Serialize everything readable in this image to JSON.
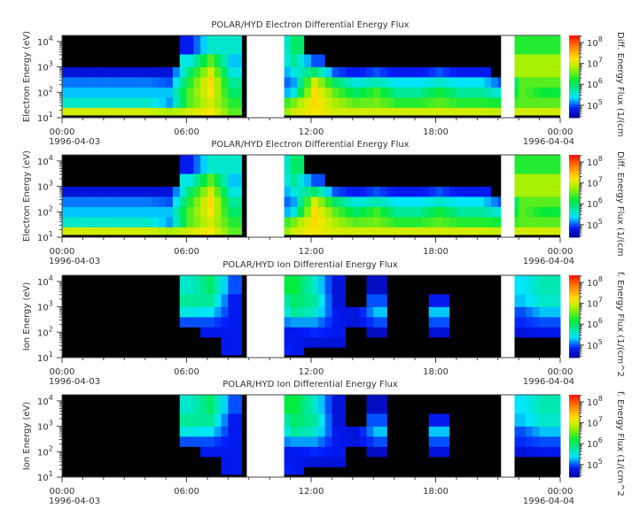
{
  "chart_data": [
    {
      "type": "heatmap",
      "title": "POLAR/HYD  Electron Differential Energy Flux",
      "ylabel": "Electron Energy (eV)",
      "colorbar_label": "Diff. Energy Flux (1/(cm",
      "x_tick_labels": [
        "00:00",
        "06:00",
        "12:00",
        "18:00",
        "00:00"
      ],
      "x_date_labels": [
        "1996-04-03",
        "1996-04-04"
      ],
      "xlim_hours": [
        0,
        24
      ],
      "ylim_log10_eV": [
        1,
        4.24
      ],
      "y_scale": "log",
      "y_tick_exponents": [
        "1",
        "2",
        "3",
        "4"
      ],
      "colorbar_tick_exponents": [
        "5",
        "6",
        "7",
        "8"
      ],
      "color_range_log10": [
        4.4,
        8.34
      ],
      "colormap": "rainbow (black below range)",
      "data_gaps_hours": [
        [
          8.9,
          10.7
        ],
        [
          21.15,
          21.8
        ]
      ],
      "time_bin_start_hours": [
        0,
        1,
        2,
        3,
        4,
        5,
        6,
        7,
        8,
        9,
        10,
        11,
        12,
        13,
        14,
        15,
        16,
        17,
        18,
        19,
        20,
        21,
        22,
        23
      ],
      "energy_band_log10_eV": [
        1.2,
        1.6,
        2.0,
        2.4,
        2.8,
        3.2,
        3.8
      ],
      "log10_flux": [
        [
          7.0,
          5.6,
          5.3,
          5.1,
          4.7,
          0,
          0
        ],
        [
          7.0,
          5.6,
          5.3,
          5.1,
          4.7,
          0,
          0
        ],
        [
          7.0,
          5.6,
          5.3,
          5.1,
          4.7,
          0,
          0
        ],
        [
          7.0,
          5.6,
          5.3,
          5.1,
          4.7,
          0,
          0
        ],
        [
          7.0,
          5.6,
          5.3,
          5.1,
          4.7,
          0,
          0
        ],
        [
          6.8,
          5.2,
          5.3,
          5.0,
          4.7,
          0,
          0
        ],
        [
          7.0,
          6.5,
          6.5,
          6.3,
          6.0,
          5.5,
          4.8
        ],
        [
          7.2,
          7.0,
          7.2,
          7.3,
          7.0,
          6.5,
          5.6
        ],
        [
          6.5,
          6.3,
          6.0,
          5.8,
          5.5,
          5.3,
          5.6
        ],
        [
          0,
          0,
          0,
          0,
          0,
          0,
          0
        ],
        [
          6.2,
          6.0,
          4.8,
          4.8,
          4.8,
          5.0,
          4.8
        ],
        [
          7.0,
          6.6,
          5.5,
          5.2,
          5.5,
          5.8,
          6.0
        ],
        [
          7.2,
          7.3,
          7.3,
          7.0,
          6.0,
          5.0,
          0
        ],
        [
          7.0,
          6.8,
          6.5,
          6.0,
          5.0,
          0,
          0
        ],
        [
          7.0,
          6.5,
          6.0,
          5.5,
          4.8,
          0,
          0
        ],
        [
          7.0,
          6.6,
          6.4,
          5.7,
          5.0,
          0,
          0
        ],
        [
          7.0,
          6.3,
          5.8,
          5.4,
          4.8,
          0,
          0
        ],
        [
          7.0,
          6.3,
          5.8,
          5.4,
          4.8,
          0,
          0
        ],
        [
          7.0,
          6.5,
          6.2,
          5.6,
          5.0,
          0,
          0
        ],
        [
          7.0,
          6.3,
          5.8,
          5.4,
          4.8,
          0,
          0
        ],
        [
          7.0,
          6.3,
          5.8,
          5.4,
          4.8,
          0,
          0
        ],
        [
          6.9,
          6.2,
          5.5,
          5.0,
          0,
          0,
          0
        ],
        [
          7.0,
          6.5,
          6.5,
          6.5,
          6.8,
          6.8,
          6.3
        ],
        [
          7.0,
          6.5,
          6.2,
          6.5,
          6.8,
          6.8,
          6.3
        ]
      ]
    },
    {
      "type": "heatmap",
      "title": "POLAR/HYD  Electron Differential Energy Flux",
      "ylabel": "Electron Energy (eV)",
      "colorbar_label": "Diff. Energy Flux (1/(cm",
      "x_tick_labels": [
        "00:00",
        "06:00",
        "12:00",
        "18:00",
        "00:00"
      ],
      "x_date_labels": [
        "1996-04-03",
        "1996-04-04"
      ],
      "xlim_hours": [
        0,
        24
      ],
      "ylim_log10_eV": [
        1,
        4.24
      ],
      "y_scale": "log",
      "y_tick_exponents": [
        "1",
        "2",
        "3",
        "4"
      ],
      "colorbar_tick_exponents": [
        "5",
        "6",
        "7",
        "8"
      ],
      "color_range_log10": [
        4.4,
        8.34
      ],
      "colormap": "rainbow (black below range)",
      "data_gaps_hours": [
        [
          8.9,
          10.7
        ],
        [
          21.15,
          21.8
        ]
      ],
      "time_bin_start_hours": [
        0,
        1,
        2,
        3,
        4,
        5,
        6,
        7,
        8,
        9,
        10,
        11,
        12,
        13,
        14,
        15,
        16,
        17,
        18,
        19,
        20,
        21,
        22,
        23
      ],
      "energy_band_log10_eV": [
        1.2,
        1.6,
        2.0,
        2.4,
        2.8,
        3.2,
        3.8
      ],
      "log10_flux": [
        [
          7.0,
          5.6,
          5.3,
          5.1,
          4.7,
          0,
          0
        ],
        [
          7.0,
          5.6,
          5.3,
          5.1,
          4.7,
          0,
          0
        ],
        [
          7.0,
          5.6,
          5.3,
          5.1,
          4.7,
          0,
          0
        ],
        [
          7.0,
          5.6,
          5.3,
          5.1,
          4.7,
          0,
          0
        ],
        [
          7.0,
          5.6,
          5.3,
          5.1,
          4.7,
          0,
          0
        ],
        [
          6.8,
          5.2,
          5.3,
          5.0,
          4.7,
          0,
          0
        ],
        [
          7.0,
          6.5,
          6.5,
          6.3,
          6.0,
          5.5,
          4.8
        ],
        [
          7.2,
          7.0,
          7.2,
          7.3,
          7.0,
          6.5,
          5.6
        ],
        [
          6.5,
          6.3,
          6.0,
          5.8,
          5.5,
          5.3,
          5.6
        ],
        [
          0,
          0,
          0,
          0,
          0,
          0,
          0
        ],
        [
          6.2,
          6.0,
          4.8,
          4.8,
          4.8,
          5.0,
          4.8
        ],
        [
          7.0,
          6.6,
          5.5,
          5.2,
          5.5,
          5.8,
          6.0
        ],
        [
          7.2,
          7.3,
          7.3,
          7.0,
          6.0,
          5.0,
          0
        ],
        [
          7.0,
          6.8,
          6.5,
          6.0,
          5.0,
          0,
          0
        ],
        [
          7.0,
          6.5,
          6.0,
          5.5,
          4.8,
          0,
          0
        ],
        [
          7.0,
          6.6,
          6.4,
          5.7,
          5.0,
          0,
          0
        ],
        [
          7.0,
          6.3,
          5.8,
          5.4,
          4.8,
          0,
          0
        ],
        [
          7.0,
          6.3,
          5.8,
          5.4,
          4.8,
          0,
          0
        ],
        [
          7.0,
          6.5,
          6.2,
          5.6,
          5.0,
          0,
          0
        ],
        [
          7.0,
          6.3,
          5.8,
          5.4,
          4.8,
          0,
          0
        ],
        [
          7.0,
          6.3,
          5.8,
          5.4,
          4.8,
          0,
          0
        ],
        [
          6.9,
          6.2,
          5.5,
          5.0,
          0,
          0,
          0
        ],
        [
          7.0,
          6.5,
          6.5,
          6.5,
          6.8,
          6.8,
          6.3
        ],
        [
          7.0,
          6.5,
          6.2,
          6.5,
          6.8,
          6.8,
          6.3
        ]
      ]
    },
    {
      "type": "heatmap",
      "title": "POLAR/HYD  Ion Differential Energy Flux",
      "ylabel": "Ion Energy (eV)",
      "colorbar_label": "f. Energy Flux (1/(cm^2",
      "x_tick_labels": [
        "00:00",
        "06:00",
        "12:00",
        "18:00",
        "00:00"
      ],
      "x_date_labels": [
        "1996-04-03",
        "1996-04-04"
      ],
      "xlim_hours": [
        0,
        24
      ],
      "ylim_log10_eV": [
        1,
        4.24
      ],
      "y_scale": "log",
      "y_tick_exponents": [
        "1",
        "2",
        "3",
        "4"
      ],
      "colorbar_tick_exponents": [
        "5",
        "6",
        "7",
        "8"
      ],
      "color_range_log10": [
        4.4,
        8.34
      ],
      "colormap": "rainbow (black below range)",
      "data_gaps_hours": [
        [
          8.9,
          10.7
        ],
        [
          21.15,
          21.8
        ]
      ],
      "time_bin_start_hours": [
        0,
        1,
        2,
        3,
        4,
        5,
        6,
        7,
        8,
        9,
        10,
        11,
        12,
        13,
        14,
        15,
        16,
        17,
        18,
        19,
        20,
        21,
        22,
        23
      ],
      "energy_band_log10_eV": [
        1.2,
        1.6,
        2.0,
        2.4,
        2.8,
        3.2,
        3.8
      ],
      "log10_flux": [
        [
          0,
          0,
          0,
          0,
          0,
          0,
          0
        ],
        [
          0,
          0,
          0,
          0,
          0,
          0,
          0
        ],
        [
          0,
          0,
          0,
          0,
          0,
          0,
          0
        ],
        [
          0,
          0,
          0,
          0,
          0,
          0,
          0
        ],
        [
          0,
          0,
          0,
          0,
          0,
          0,
          0
        ],
        [
          0,
          0,
          0,
          0,
          0,
          0,
          0
        ],
        [
          0,
          0,
          0,
          5.0,
          5.5,
          5.8,
          5.6
        ],
        [
          0,
          0,
          4.8,
          5.0,
          5.4,
          5.8,
          6.0
        ],
        [
          4.8,
          4.8,
          4.8,
          4.8,
          4.8,
          4.8,
          5.0
        ],
        [
          0,
          0,
          0,
          0,
          0,
          0,
          0
        ],
        [
          5.0,
          4.8,
          4.8,
          5.0,
          5.0,
          5.3,
          6.0
        ],
        [
          4.8,
          4.8,
          4.8,
          5.2,
          5.8,
          6.0,
          6.2
        ],
        [
          0,
          4.7,
          4.9,
          5.2,
          5.6,
          5.8,
          5.6
        ],
        [
          0,
          4.7,
          4.8,
          4.8,
          4.8,
          4.7,
          4.7
        ],
        [
          0,
          0,
          0,
          4.7,
          4.7,
          0,
          0
        ],
        [
          0,
          0,
          4.6,
          5.0,
          5.3,
          5.0,
          4.6
        ],
        [
          0,
          0,
          0,
          0,
          0,
          0,
          0
        ],
        [
          0,
          0,
          0,
          0,
          0,
          0,
          0
        ],
        [
          0,
          0,
          4.7,
          5.0,
          5.3,
          4.8,
          0
        ],
        [
          0,
          0,
          0,
          0,
          0,
          0,
          0
        ],
        [
          0,
          0,
          0,
          0,
          0,
          0,
          0
        ],
        [
          0,
          0,
          0,
          0,
          0,
          0,
          0
        ],
        [
          0,
          0,
          4.7,
          4.9,
          5.0,
          5.3,
          5.4
        ],
        [
          0,
          0,
          4.8,
          5.0,
          5.3,
          5.6,
          5.7
        ]
      ]
    },
    {
      "type": "heatmap",
      "title": "POLAR/HYD  Ion Differential Energy Flux",
      "ylabel": "Ion Energy (eV)",
      "colorbar_label": "f. Energy Flux (1/(cm^2",
      "x_tick_labels": [
        "00:00",
        "06:00",
        "12:00",
        "18:00",
        "00:00"
      ],
      "x_date_labels": [
        "1996-04-03",
        "1996-04-04"
      ],
      "xlim_hours": [
        0,
        24
      ],
      "ylim_log10_eV": [
        1,
        4.24
      ],
      "y_scale": "log",
      "y_tick_exponents": [
        "1",
        "2",
        "3",
        "4"
      ],
      "colorbar_tick_exponents": [
        "5",
        "6",
        "7",
        "8"
      ],
      "color_range_log10": [
        4.4,
        8.34
      ],
      "colormap": "rainbow (black below range)",
      "data_gaps_hours": [
        [
          8.9,
          10.7
        ],
        [
          21.15,
          21.8
        ]
      ],
      "time_bin_start_hours": [
        0,
        1,
        2,
        3,
        4,
        5,
        6,
        7,
        8,
        9,
        10,
        11,
        12,
        13,
        14,
        15,
        16,
        17,
        18,
        19,
        20,
        21,
        22,
        23
      ],
      "energy_band_log10_eV": [
        1.2,
        1.6,
        2.0,
        2.4,
        2.8,
        3.2,
        3.8
      ],
      "log10_flux": [
        [
          0,
          0,
          0,
          0,
          0,
          0,
          0
        ],
        [
          0,
          0,
          0,
          0,
          0,
          0,
          0
        ],
        [
          0,
          0,
          0,
          0,
          0,
          0,
          0
        ],
        [
          0,
          0,
          0,
          0,
          0,
          0,
          0
        ],
        [
          0,
          0,
          0,
          0,
          0,
          0,
          0
        ],
        [
          0,
          0,
          0,
          0,
          0,
          0,
          0
        ],
        [
          0,
          0,
          0,
          5.0,
          5.5,
          5.8,
          5.6
        ],
        [
          0,
          0,
          4.8,
          5.0,
          5.4,
          5.8,
          6.0
        ],
        [
          4.8,
          4.8,
          4.8,
          4.8,
          4.8,
          4.8,
          5.0
        ],
        [
          0,
          0,
          0,
          0,
          0,
          0,
          0
        ],
        [
          5.0,
          4.8,
          4.8,
          5.0,
          5.0,
          5.3,
          6.0
        ],
        [
          4.8,
          4.8,
          4.8,
          5.2,
          5.8,
          6.0,
          6.2
        ],
        [
          0,
          4.7,
          4.9,
          5.2,
          5.6,
          5.8,
          5.6
        ],
        [
          0,
          4.7,
          4.8,
          4.8,
          4.8,
          4.7,
          4.7
        ],
        [
          0,
          0,
          0,
          4.7,
          4.7,
          0,
          0
        ],
        [
          0,
          0,
          4.6,
          5.0,
          5.3,
          5.0,
          4.6
        ],
        [
          0,
          0,
          0,
          0,
          0,
          0,
          0
        ],
        [
          0,
          0,
          0,
          0,
          0,
          0,
          0
        ],
        [
          0,
          0,
          4.7,
          5.0,
          5.3,
          4.8,
          0
        ],
        [
          0,
          0,
          0,
          0,
          0,
          0,
          0
        ],
        [
          0,
          0,
          0,
          0,
          0,
          0,
          0
        ],
        [
          0,
          0,
          0,
          0,
          0,
          0,
          0
        ],
        [
          0,
          0,
          4.7,
          4.9,
          5.0,
          5.3,
          5.4
        ],
        [
          0,
          0,
          4.8,
          5.0,
          5.3,
          5.6,
          5.7
        ]
      ]
    }
  ]
}
